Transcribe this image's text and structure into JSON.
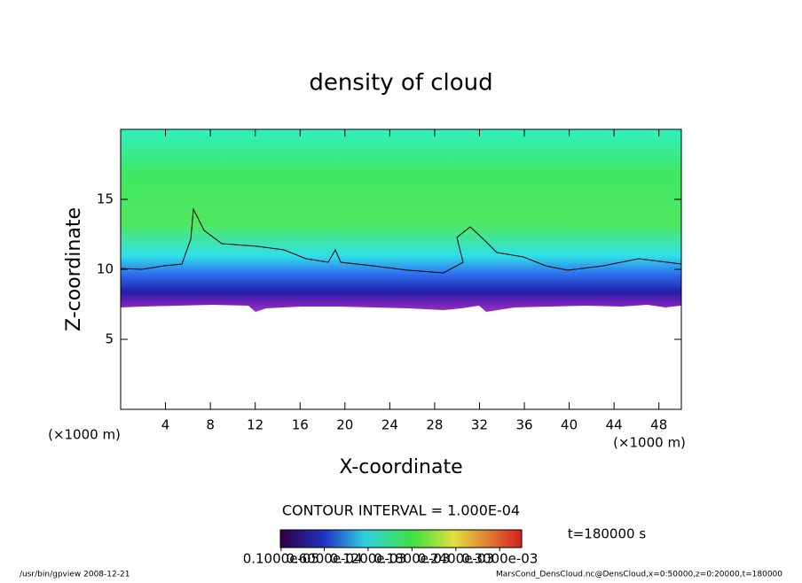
{
  "chart_data": {
    "type": "contour",
    "title": "density of cloud",
    "xlabel": "X-coordinate",
    "ylabel": "Z-coordinate",
    "xunit": "(×1000 m)",
    "yunit": "(×1000 m)",
    "xlim": [
      0,
      50
    ],
    "xticks": [
      4,
      8,
      12,
      16,
      20,
      24,
      28,
      32,
      36,
      40,
      44,
      48
    ],
    "ylim": [
      0,
      20
    ],
    "yticks": [
      5,
      10,
      15
    ],
    "contour_interval": "CONTOUR INTERVAL = 1.000E-04",
    "time_label": "t=180000 s",
    "colorbar_lim": [
      0,
      0.00033
    ],
    "colorbar_ticks": [
      {
        "value": 1e-06,
        "label": "0.1000e-05"
      },
      {
        "value": 6e-05,
        "label": "0.6000e-04"
      },
      {
        "value": 0.00012,
        "label": "0.1200e-03"
      },
      {
        "value": 0.00018,
        "label": "0.1800e-03"
      },
      {
        "value": 0.00024,
        "label": "0.2400e-03"
      },
      {
        "value": 0.0003,
        "label": "0.3000e-03"
      }
    ],
    "footer_left": "/usr/bin/gpview  2008-12-21",
    "footer_right": "MarsCond_DensCloud.nc@DensCloud,x=0:50000,z=0:20000,t=180000"
  }
}
